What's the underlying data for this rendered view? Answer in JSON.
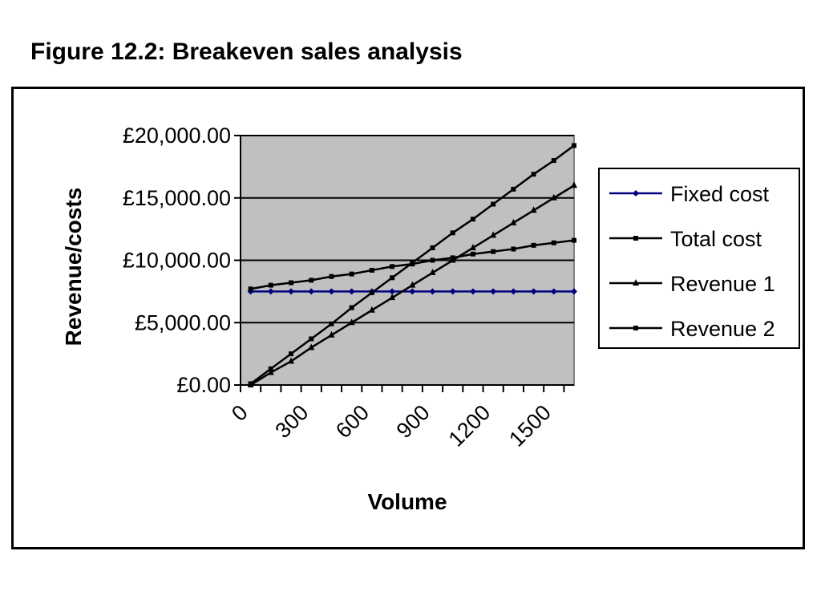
{
  "title": "Figure 12.2: Breakeven sales analysis",
  "chart_data": {
    "type": "line",
    "title": "",
    "xlabel": "Volume",
    "ylabel": "Revenue/costs",
    "x": [
      0,
      100,
      200,
      300,
      400,
      500,
      600,
      700,
      800,
      900,
      1000,
      1100,
      1200,
      1300,
      1400,
      1500,
      1600
    ],
    "x_tick_labels": [
      "0",
      "300",
      "600",
      "900",
      "1200",
      "1500"
    ],
    "x_tick_values": [
      0,
      300,
      600,
      900,
      1200,
      1500
    ],
    "xlim": [
      -50,
      1600
    ],
    "y_tick_labels": [
      "£0.00",
      "£5,000.00",
      "£10,000.00",
      "£15,000.00",
      "£20,000.00"
    ],
    "y_tick_values": [
      0,
      5000,
      10000,
      15000,
      20000
    ],
    "ylim": [
      0,
      20000
    ],
    "grid": "horizontal",
    "plot_background": "#c0c0c0",
    "legend_position": "right",
    "series": [
      {
        "name": "Fixed cost",
        "marker": "diamond",
        "color": "#000080",
        "values": [
          7500,
          7500,
          7500,
          7500,
          7500,
          7500,
          7500,
          7500,
          7500,
          7500,
          7500,
          7500,
          7500,
          7500,
          7500,
          7500,
          7500
        ]
      },
      {
        "name": "Total cost",
        "marker": "square",
        "color": "#000000",
        "values": [
          7700,
          8000,
          8200,
          8400,
          8700,
          8900,
          9200,
          9500,
          9700,
          10000,
          10200,
          10500,
          10700,
          10900,
          11200,
          11400,
          11600
        ]
      },
      {
        "name": "Revenue 1",
        "marker": "triangle",
        "color": "#000000",
        "values": [
          0,
          1000,
          1900,
          3000,
          4000,
          5000,
          6000,
          7000,
          8000,
          9000,
          10000,
          11000,
          12000,
          13000,
          14000,
          15000,
          16000
        ]
      },
      {
        "name": "Revenue 2",
        "marker": "square",
        "color": "#000000",
        "values": [
          100,
          1300,
          2500,
          3700,
          4900,
          6200,
          7400,
          8600,
          9800,
          11000,
          12200,
          13300,
          14500,
          15700,
          16900,
          18000,
          19200
        ]
      }
    ]
  }
}
